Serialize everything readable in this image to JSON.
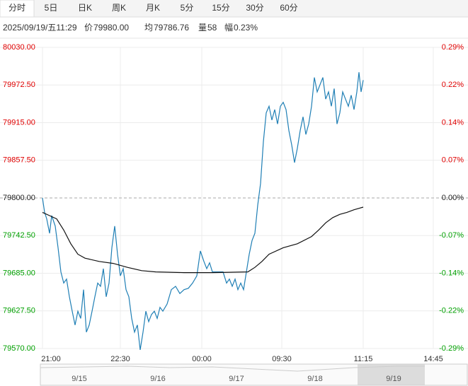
{
  "tabs": [
    "分时",
    "5日",
    "日K",
    "周K",
    "月K",
    "5分",
    "15分",
    "30分",
    "60分"
  ],
  "info": {
    "time": "2025/09/19/五11:29",
    "price_label": "价",
    "price": "79980.00",
    "avg_label": "均",
    "avg": "79786.76",
    "vol_label": "量",
    "vol": "58",
    "amp_label": "幅",
    "amp": "0.23%"
  },
  "chart_data": {
    "type": "line",
    "reference": 79800,
    "up_color": "#e00000",
    "down_color": "#00a000",
    "flat_color": "#222222",
    "xlim": [
      0,
      595
    ],
    "xticks": [
      {
        "value": 0,
        "label": "21:00"
      },
      {
        "value": 110,
        "label": "22:30"
      },
      {
        "value": 225,
        "label": "00:00"
      },
      {
        "value": 338,
        "label": "09:30"
      },
      {
        "value": 453,
        "label": "11:15"
      },
      {
        "value": 552,
        "label": "14:45"
      }
    ],
    "ylim": [
      79570,
      80030
    ],
    "yticks": [
      {
        "value": 80030,
        "label": "80030.00"
      },
      {
        "value": 79972.5,
        "label": "79972.50"
      },
      {
        "value": 79915,
        "label": "79915.00"
      },
      {
        "value": 79857.5,
        "label": "79857.50"
      },
      {
        "value": 79800,
        "label": "79800.00"
      },
      {
        "value": 79742.5,
        "label": "79742.50"
      },
      {
        "value": 79685,
        "label": "79685.00"
      },
      {
        "value": 79627.5,
        "label": "79627.50"
      },
      {
        "value": 79570,
        "label": "79570.00"
      }
    ],
    "y2lim": [
      -0.288,
      0.288
    ],
    "y2ticks": [
      {
        "value": 0.288,
        "label": "0.29%"
      },
      {
        "value": 0.216,
        "label": "0.22%"
      },
      {
        "value": 0.144,
        "label": "0.14%"
      },
      {
        "value": 0.072,
        "label": "0.07%"
      },
      {
        "value": 0,
        "label": "0.00%"
      },
      {
        "value": -0.072,
        "label": "-0.07%"
      },
      {
        "value": -0.144,
        "label": "-0.14%"
      },
      {
        "value": -0.216,
        "label": "-0.22%"
      },
      {
        "value": -0.288,
        "label": "-0.29%"
      }
    ],
    "grid": true,
    "series": [
      {
        "color": "#1f7fb5",
        "x": [
          0,
          3,
          6,
          10,
          13,
          18,
          22,
          26,
          30,
          34,
          38,
          42,
          46,
          50,
          54,
          58,
          62,
          66,
          70,
          74,
          78,
          82,
          86,
          90,
          94,
          98,
          102,
          106,
          110,
          114,
          118,
          122,
          126,
          130,
          134,
          138,
          142,
          146,
          150,
          154,
          158,
          162,
          166,
          170,
          176,
          182,
          188,
          194,
          200,
          206,
          212,
          218,
          223,
          228,
          232,
          236,
          240,
          245,
          250,
          255,
          260,
          264,
          268,
          272,
          276,
          280,
          284,
          288,
          292,
          296,
          300,
          304,
          308,
          312,
          316,
          320,
          324,
          328,
          332,
          336,
          340,
          344,
          348,
          352,
          356,
          360,
          364,
          368,
          372,
          376,
          380,
          384,
          388,
          392,
          396,
          400,
          404,
          408,
          412,
          416,
          420,
          424,
          428,
          432,
          436,
          440,
          444,
          447,
          450,
          453
        ],
        "values": [
          79800,
          79778,
          79768,
          79746,
          79773,
          79757,
          79724,
          79687,
          79670,
          79676,
          79649,
          79627,
          79606,
          79627,
          79616,
          79660,
          79595,
          79606,
          79627,
          79649,
          79670,
          79665,
          79692,
          79649,
          79670,
          79724,
          79757,
          79714,
          79681,
          79692,
          79660,
          79649,
          79616,
          79595,
          79606,
          79568,
          79595,
          79627,
          79611,
          79622,
          79627,
          79616,
          79633,
          79627,
          79638,
          79660,
          79665,
          79654,
          79660,
          79662,
          79670,
          79681,
          79719,
          79703,
          79692,
          79701,
          79687,
          79687,
          79687,
          79687,
          79670,
          79676,
          79665,
          79676,
          79660,
          79670,
          79660,
          79687,
          79714,
          79735,
          79746,
          79789,
          79822,
          79886,
          79930,
          79940,
          79919,
          79935,
          79913,
          79940,
          79946,
          79935,
          79903,
          79881,
          79854,
          79876,
          79903,
          79924,
          79897,
          79913,
          79940,
          79984,
          79962,
          79973,
          79984,
          79951,
          79962,
          79940,
          79967,
          79913,
          79930,
          79962,
          79951,
          79940,
          79957,
          79935,
          79962,
          79992,
          79962,
          79980
        ]
      },
      {
        "color": "#111111",
        "x": [
          0,
          10,
          20,
          30,
          40,
          50,
          60,
          80,
          100,
          120,
          140,
          160,
          200,
          240,
          290,
          300,
          310,
          320,
          340,
          360,
          380,
          390,
          400,
          410,
          420,
          430,
          440,
          453
        ],
        "values": [
          79778,
          79773,
          79768,
          79751,
          79730,
          79714,
          79708,
          79703,
          79700,
          79694,
          79689,
          79687,
          79686,
          79686,
          79687,
          79694,
          79703,
          79714,
          79724,
          79730,
          79741,
          79751,
          79762,
          79770,
          79775,
          79778,
          79782,
          79786
        ]
      }
    ],
    "navigator": [
      "9/15",
      "9/16",
      "9/17",
      "9/18",
      "9/19"
    ]
  }
}
